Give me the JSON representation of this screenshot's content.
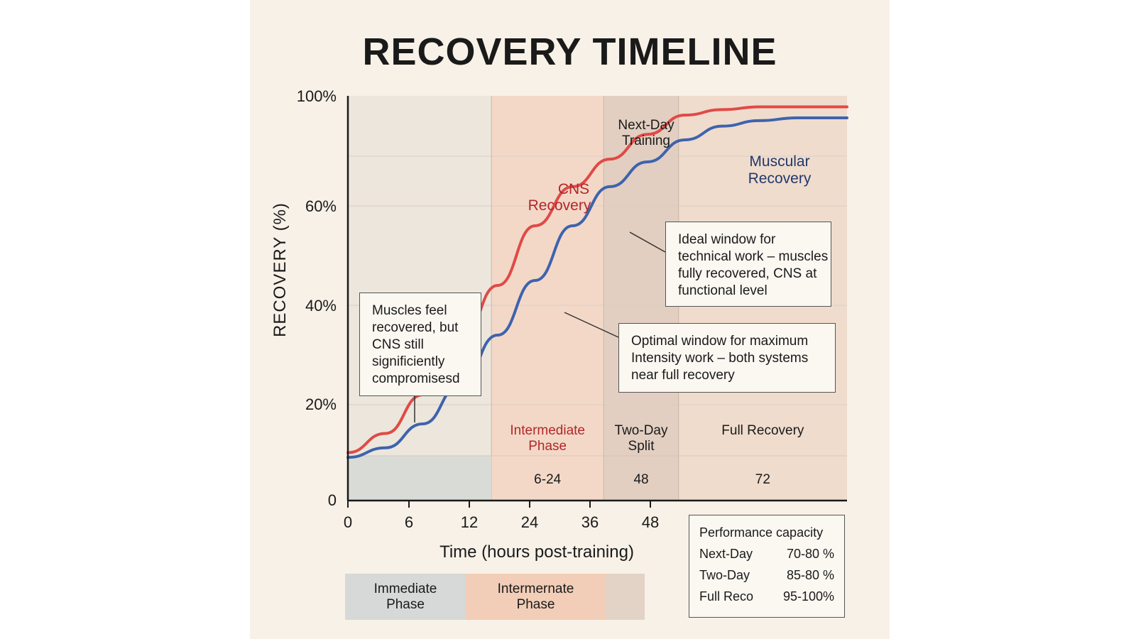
{
  "chart_data": {
    "type": "line",
    "title": "RECOVERY TIMELINE",
    "xlabel": "Time (hours post-training)",
    "ylabel": "RECOVERY (%)",
    "x_ticks": [
      "0",
      "6",
      "12",
      "24",
      "36",
      "48"
    ],
    "y_ticks": [
      "0",
      "20%",
      "40%",
      "60%",
      "100%"
    ],
    "series": [
      {
        "name": "CNS Recovery",
        "color": "#e04a46",
        "points": [
          [
            0,
            10
          ],
          [
            6,
            14
          ],
          [
            12,
            22
          ],
          [
            18,
            32
          ],
          [
            24,
            44
          ],
          [
            30,
            56
          ],
          [
            36,
            67
          ],
          [
            42,
            77
          ],
          [
            48,
            86
          ],
          [
            54,
            93
          ],
          [
            60,
            95
          ],
          [
            66,
            96
          ],
          [
            72,
            96
          ],
          [
            80,
            96
          ]
        ]
      },
      {
        "name": "Muscular Recovery",
        "color": "#3e63ad",
        "points": [
          [
            0,
            9
          ],
          [
            6,
            11
          ],
          [
            12,
            16
          ],
          [
            18,
            24
          ],
          [
            24,
            34
          ],
          [
            30,
            45
          ],
          [
            36,
            56
          ],
          [
            42,
            67
          ],
          [
            48,
            76
          ],
          [
            54,
            84
          ],
          [
            60,
            89
          ],
          [
            66,
            91
          ],
          [
            72,
            92
          ],
          [
            80,
            92
          ]
        ]
      }
    ],
    "phases": [
      {
        "name": "",
        "hours": "",
        "from": 0,
        "to": 23,
        "color": "#ece6dc"
      },
      {
        "name": "Intermediate Phase",
        "hours": "6-24",
        "from": 23,
        "to": 41,
        "color": "#f3d8c8"
      },
      {
        "name": "Two-Day Split",
        "hours": "48",
        "from": 41,
        "to": 53,
        "color": "#e2cfc1"
      },
      {
        "name": "Full Recovery",
        "hours": "72",
        "from": 53,
        "to": 80,
        "color": "#efdccd"
      }
    ],
    "phase_markers": {
      "next_day": "Next-Day Training"
    },
    "grid": true
  },
  "callouts": {
    "muscles": "Muscles feel recovered, but CNS still significiently compromisesd",
    "ideal": "Ideal window for technical work – muscles fully recovered, CNS at functional level",
    "optimal": "Optimal window for maximum Intensity work – both systems near full recovery"
  },
  "legend": [
    {
      "label": "Immediate Phase",
      "color": "#d6d9d7"
    },
    {
      "label": "Intermernate Phase",
      "color": "#f2cdb7"
    },
    {
      "label": "",
      "color": "#e2d3c6"
    }
  ],
  "performance": {
    "title": "Performance capacity",
    "rows": [
      {
        "label": "Next-Day",
        "value": "70-80 %"
      },
      {
        "label": "Two-Day",
        "value": "85-80 %"
      },
      {
        "label": "Full Reco",
        "value": "95-100%"
      }
    ]
  }
}
